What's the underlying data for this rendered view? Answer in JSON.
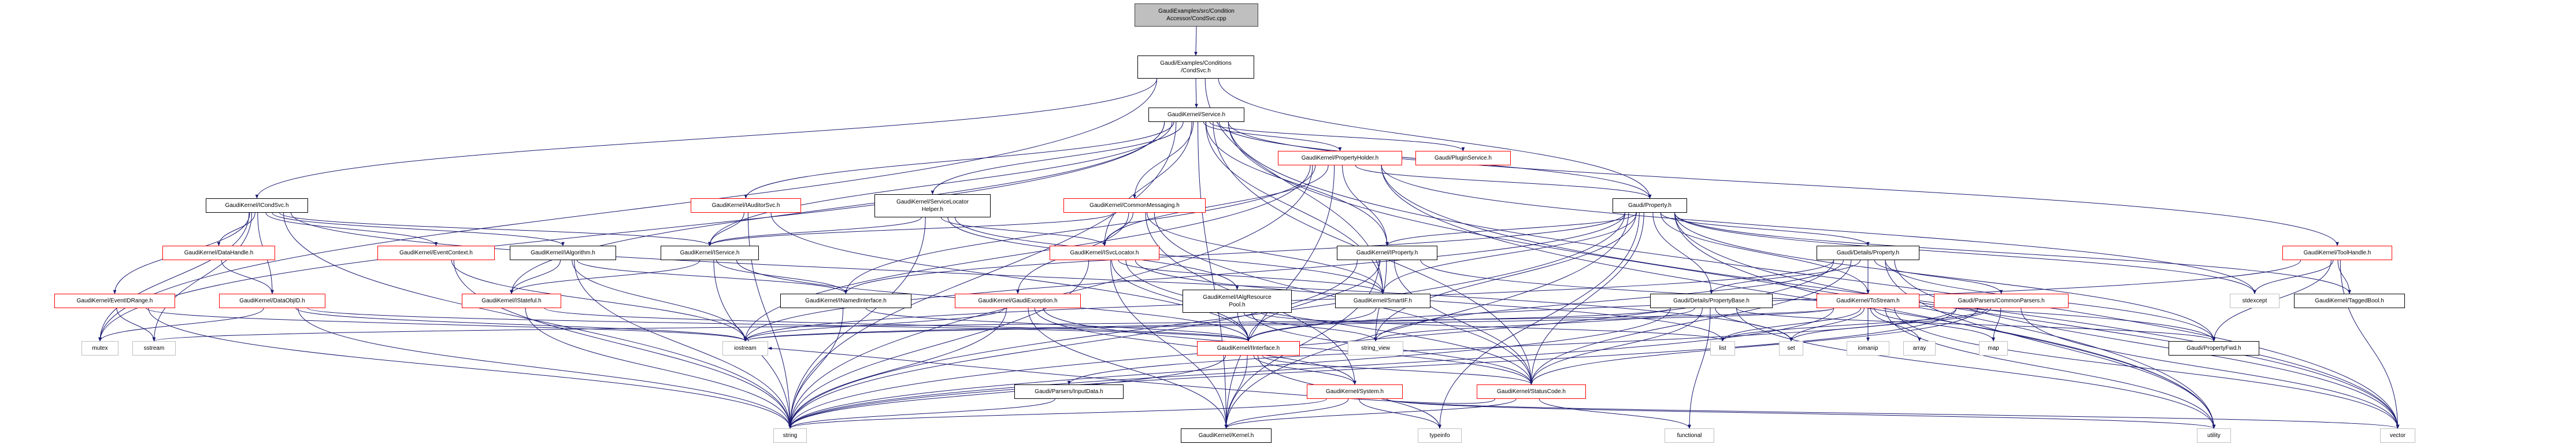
{
  "colors": {
    "edge": "#191970",
    "documented_border": "#000000",
    "truncated_border": "#ff0000",
    "system_border": "#bfbfbf",
    "root_fill": "#bfbfbf"
  },
  "nodes": {
    "cpp": {
      "lines": [
        "GaudiExamples/src/Condition",
        "Accessor/CondSvc.cpp"
      ],
      "style": "root"
    },
    "condsvch": {
      "lines": [
        "Gaudi/Examples/Conditions",
        "/CondSvc.h"
      ],
      "style": "black"
    },
    "service": {
      "lines": [
        "GaudiKernel/Service.h"
      ],
      "style": "black"
    },
    "propholder": {
      "lines": [
        "GaudiKernel/PropertyHolder.h"
      ],
      "style": "red"
    },
    "pluginsvc": {
      "lines": [
        "Gaudi/PluginService.h"
      ],
      "style": "red"
    },
    "slh": {
      "lines": [
        "GaudiKernel/ServiceLocator",
        "Helper.h"
      ],
      "style": "black"
    },
    "commsg": {
      "lines": [
        "GaudiKernel/CommonMessaging.h"
      ],
      "style": "red"
    },
    "property": {
      "lines": [
        "Gaudi/Property.h"
      ],
      "style": "black"
    },
    "icondsvc": {
      "lines": [
        "GaudiKernel/ICondSvc.h"
      ],
      "style": "black"
    },
    "iauditor": {
      "lines": [
        "GaudiKernel/IAuditorSvc.h"
      ],
      "style": "red"
    },
    "datahandle": {
      "lines": [
        "GaudiKernel/DataHandle.h"
      ],
      "style": "red"
    },
    "eventctx": {
      "lines": [
        "GaudiKernel/EventContext.h"
      ],
      "style": "red"
    },
    "ialgorithm": {
      "lines": [
        "GaudiKernel/IAlgorithm.h"
      ],
      "style": "black"
    },
    "iservice": {
      "lines": [
        "GaudiKernel/IService.h"
      ],
      "style": "black"
    },
    "isvcloc": {
      "lines": [
        "GaudiKernel/ISvcLocator.h"
      ],
      "style": "red"
    },
    "iproperty": {
      "lines": [
        "GaudiKernel/IProperty.h"
      ],
      "style": "black"
    },
    "detprop": {
      "lines": [
        "Gaudi/Details/Property.h"
      ],
      "style": "black"
    },
    "toolhandle": {
      "lines": [
        "GaudiKernel/ToolHandle.h"
      ],
      "style": "red"
    },
    "eventidrange": {
      "lines": [
        "GaudiKernel/EventIDRange.h"
      ],
      "style": "red"
    },
    "dataobjid": {
      "lines": [
        "GaudiKernel/DataObjID.h"
      ],
      "style": "red"
    },
    "istateful": {
      "lines": [
        "GaudiKernel/IStateful.h"
      ],
      "style": "red"
    },
    "inamed": {
      "lines": [
        "GaudiKernel/INamedInterface.h"
      ],
      "style": "black"
    },
    "gexc": {
      "lines": [
        "GaudiKernel/GaudiException.h"
      ],
      "style": "red"
    },
    "ialgres": {
      "lines": [
        "GaudiKernel/IAlgResource",
        "Pool.h"
      ],
      "style": "black"
    },
    "smartif": {
      "lines": [
        "GaudiKernel/SmartIF.h"
      ],
      "style": "black"
    },
    "propbase": {
      "lines": [
        "Gaudi/Details/PropertyBase.h"
      ],
      "style": "black"
    },
    "tostream": {
      "lines": [
        "GaudiKernel/ToStream.h"
      ],
      "style": "red"
    },
    "commonparsers": {
      "lines": [
        "Gaudi/Parsers/CommonParsers.h"
      ],
      "style": "red"
    },
    "stdexcept": {
      "lines": [
        "stdexcept"
      ],
      "style": "gray"
    },
    "taggedbool": {
      "lines": [
        "GaudiKernel/TaggedBool.h"
      ],
      "style": "black"
    },
    "mutex": {
      "lines": [
        "mutex"
      ],
      "style": "gray"
    },
    "sstream": {
      "lines": [
        "sstream"
      ],
      "style": "gray"
    },
    "iostream": {
      "lines": [
        "iostream"
      ],
      "style": "gray"
    },
    "iinterface": {
      "lines": [
        "GaudiKernel/IInterface.h"
      ],
      "style": "red"
    },
    "stringview": {
      "lines": [
        "string_view"
      ],
      "style": "gray"
    },
    "list": {
      "lines": [
        "list"
      ],
      "style": "gray"
    },
    "set": {
      "lines": [
        "set"
      ],
      "style": "gray"
    },
    "iomanip": {
      "lines": [
        "iomanip"
      ],
      "style": "gray"
    },
    "array": {
      "lines": [
        "array"
      ],
      "style": "gray"
    },
    "map": {
      "lines": [
        "map"
      ],
      "style": "gray"
    },
    "propfwd": {
      "lines": [
        "Gaudi/PropertyFwd.h"
      ],
      "style": "black"
    },
    "inputdata": {
      "lines": [
        "Gaudi/Parsers/InputData.h"
      ],
      "style": "black"
    },
    "system": {
      "lines": [
        "GaudiKernel/System.h"
      ],
      "style": "red"
    },
    "statuscode": {
      "lines": [
        "GaudiKernel/StatusCode.h"
      ],
      "style": "red"
    },
    "string": {
      "lines": [
        "string"
      ],
      "style": "gray"
    },
    "kernel": {
      "lines": [
        "GaudiKernel/Kernel.h"
      ],
      "style": "black"
    },
    "typeinfo": {
      "lines": [
        "typeinfo"
      ],
      "style": "gray"
    },
    "functional": {
      "lines": [
        "functional"
      ],
      "style": "gray"
    },
    "utility": {
      "lines": [
        "utility"
      ],
      "style": "gray"
    },
    "vector": {
      "lines": [
        "vector"
      ],
      "style": "gray"
    }
  },
  "edges": [
    [
      "cpp",
      "condsvch"
    ],
    [
      "condsvch",
      "service"
    ],
    [
      "condsvch",
      "icondsvc"
    ],
    [
      "condsvch",
      "property"
    ],
    [
      "condsvch",
      "smartif"
    ],
    [
      "condsvch",
      "mutex"
    ],
    [
      "service",
      "propholder"
    ],
    [
      "service",
      "pluginsvc"
    ],
    [
      "service",
      "property"
    ],
    [
      "service",
      "commsg"
    ],
    [
      "service",
      "slh"
    ],
    [
      "service",
      "isvcloc"
    ],
    [
      "service",
      "iproperty"
    ],
    [
      "service",
      "smartif"
    ],
    [
      "service",
      "iservice"
    ],
    [
      "service",
      "iauditor"
    ],
    [
      "service",
      "istateful"
    ],
    [
      "service",
      "kernel"
    ],
    [
      "service",
      "statuscode"
    ],
    [
      "service",
      "toolhandle"
    ],
    [
      "service",
      "vector"
    ],
    [
      "service",
      "string"
    ],
    [
      "service",
      "mutex"
    ],
    [
      "service",
      "utility"
    ],
    [
      "propholder",
      "property"
    ],
    [
      "propholder",
      "iproperty"
    ],
    [
      "propholder",
      "isvcloc"
    ],
    [
      "propholder",
      "inamed"
    ],
    [
      "propholder",
      "string"
    ],
    [
      "propholder",
      "stdexcept"
    ],
    [
      "propholder",
      "utility"
    ],
    [
      "propholder",
      "vector"
    ],
    [
      "propholder",
      "kernel"
    ],
    [
      "propholder",
      "iostream"
    ],
    [
      "slh",
      "isvcloc"
    ],
    [
      "slh",
      "smartif"
    ],
    [
      "slh",
      "iservice"
    ],
    [
      "slh",
      "string"
    ],
    [
      "slh",
      "ialgres"
    ],
    [
      "commsg",
      "isvcloc"
    ],
    [
      "commsg",
      "smartif"
    ],
    [
      "commsg",
      "gexc"
    ],
    [
      "commsg",
      "system"
    ],
    [
      "commsg",
      "statuscode"
    ],
    [
      "commsg",
      "iservice"
    ],
    [
      "property",
      "iproperty"
    ],
    [
      "property",
      "smartif"
    ],
    [
      "property",
      "detprop"
    ],
    [
      "property",
      "propbase"
    ],
    [
      "property",
      "tostream"
    ],
    [
      "property",
      "inamed"
    ],
    [
      "property",
      "stringview"
    ],
    [
      "property",
      "statuscode"
    ],
    [
      "property",
      "typeinfo"
    ],
    [
      "property",
      "utility"
    ],
    [
      "property",
      "stdexcept"
    ],
    [
      "property",
      "taggedbool"
    ],
    [
      "property",
      "propfwd"
    ],
    [
      "property",
      "vector"
    ],
    [
      "property",
      "string"
    ],
    [
      "property",
      "kernel"
    ],
    [
      "property",
      "iostream"
    ],
    [
      "icondsvc",
      "datahandle"
    ],
    [
      "icondsvc",
      "dataobjid"
    ],
    [
      "icondsvc",
      "eventidrange"
    ],
    [
      "icondsvc",
      "eventctx"
    ],
    [
      "icondsvc",
      "ialgorithm"
    ],
    [
      "icondsvc",
      "iservice"
    ],
    [
      "icondsvc",
      "mutex"
    ],
    [
      "icondsvc",
      "sstream"
    ],
    [
      "icondsvc",
      "string"
    ],
    [
      "icondsvc",
      "set"
    ],
    [
      "iauditor",
      "iservice"
    ],
    [
      "iauditor",
      "string"
    ],
    [
      "iauditor",
      "iinterface"
    ],
    [
      "datahandle",
      "dataobjid"
    ],
    [
      "eventctx",
      "iostream"
    ],
    [
      "eventctx",
      "string"
    ],
    [
      "ialgorithm",
      "istateful"
    ],
    [
      "ialgorithm",
      "inamed"
    ],
    [
      "ialgorithm",
      "string"
    ],
    [
      "ialgorithm",
      "iostream"
    ],
    [
      "iservice",
      "istateful"
    ],
    [
      "iservice",
      "inamed"
    ],
    [
      "iservice",
      "string"
    ],
    [
      "iservice",
      "iinterface"
    ],
    [
      "eventidrange",
      "sstream"
    ],
    [
      "eventidrange",
      "string"
    ],
    [
      "eventidrange",
      "iostream"
    ],
    [
      "dataobjid",
      "mutex"
    ],
    [
      "dataobjid",
      "string"
    ],
    [
      "dataobjid",
      "iostream"
    ],
    [
      "dataobjid",
      "iinterface"
    ],
    [
      "istateful",
      "iinterface"
    ],
    [
      "istateful",
      "string"
    ],
    [
      "inamed",
      "iinterface"
    ],
    [
      "inamed",
      "string"
    ],
    [
      "isvcloc",
      "iinterface"
    ],
    [
      "isvcloc",
      "smartif"
    ],
    [
      "isvcloc",
      "string"
    ],
    [
      "isvcloc",
      "list"
    ],
    [
      "isvcloc",
      "statuscode"
    ],
    [
      "isvcloc",
      "kernel"
    ],
    [
      "iproperty",
      "iinterface"
    ],
    [
      "iproperty",
      "stringview"
    ],
    [
      "iproperty",
      "string"
    ],
    [
      "iproperty",
      "statuscode"
    ],
    [
      "iproperty",
      "kernel"
    ],
    [
      "iproperty",
      "propfwd"
    ],
    [
      "gexc",
      "statuscode"
    ],
    [
      "gexc",
      "kernel"
    ],
    [
      "gexc",
      "string"
    ],
    [
      "gexc",
      "system"
    ],
    [
      "gexc",
      "iostream"
    ],
    [
      "ialgres",
      "iinterface"
    ],
    [
      "ialgres",
      "stringview"
    ],
    [
      "ialgres",
      "list"
    ],
    [
      "ialgres",
      "statuscode"
    ],
    [
      "smartif",
      "iinterface"
    ],
    [
      "propbase",
      "stringview"
    ],
    [
      "propbase",
      "propfwd"
    ],
    [
      "propbase",
      "iostream"
    ],
    [
      "propbase",
      "string"
    ],
    [
      "propbase",
      "set"
    ],
    [
      "propbase",
      "utility"
    ],
    [
      "propbase",
      "statuscode"
    ],
    [
      "propbase",
      "functional"
    ],
    [
      "detprop",
      "propbase"
    ],
    [
      "detprop",
      "tostream"
    ],
    [
      "detprop",
      "commonparsers"
    ],
    [
      "detprop",
      "propfwd"
    ],
    [
      "detprop",
      "string"
    ],
    [
      "detprop",
      "stringview"
    ],
    [
      "detprop",
      "utility"
    ],
    [
      "detprop",
      "vector"
    ],
    [
      "detprop",
      "iostream"
    ],
    [
      "detprop",
      "statuscode"
    ],
    [
      "commonparsers",
      "inputdata"
    ],
    [
      "commonparsers",
      "list"
    ],
    [
      "commonparsers",
      "set"
    ],
    [
      "commonparsers",
      "map"
    ],
    [
      "commonparsers",
      "vector"
    ],
    [
      "commonparsers",
      "string"
    ],
    [
      "commonparsers",
      "statuscode"
    ],
    [
      "toolhandle",
      "stdexcept"
    ],
    [
      "toolhandle",
      "taggedbool"
    ],
    [
      "toolhandle",
      "vector"
    ],
    [
      "toolhandle",
      "iinterface"
    ],
    [
      "toolhandle",
      "propfwd"
    ],
    [
      "tostream",
      "list"
    ],
    [
      "tostream",
      "set"
    ],
    [
      "tostream",
      "iomanip"
    ],
    [
      "tostream",
      "array"
    ],
    [
      "tostream",
      "map"
    ],
    [
      "tostream",
      "iostream"
    ],
    [
      "tostream",
      "string"
    ],
    [
      "tostream",
      "utility"
    ],
    [
      "tostream",
      "vector"
    ],
    [
      "tostream",
      "sstream"
    ],
    [
      "iinterface",
      "system"
    ],
    [
      "iinterface",
      "statuscode"
    ],
    [
      "iinterface",
      "kernel"
    ],
    [
      "iinterface",
      "typeinfo"
    ],
    [
      "iinterface",
      "string"
    ],
    [
      "system",
      "kernel"
    ],
    [
      "system",
      "string"
    ],
    [
      "system",
      "typeinfo"
    ],
    [
      "system",
      "vector"
    ],
    [
      "system",
      "utility"
    ],
    [
      "statuscode",
      "kernel"
    ],
    [
      "statuscode",
      "functional"
    ],
    [
      "statuscode",
      "iostream"
    ],
    [
      "inputdata",
      "string"
    ]
  ]
}
